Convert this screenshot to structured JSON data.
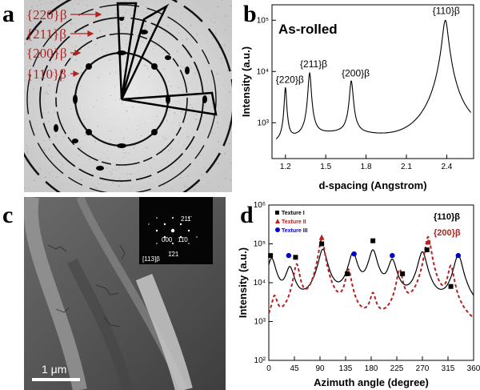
{
  "panels": {
    "a": {
      "letter": "a",
      "ring_labels": [
        "{220}β",
        "{211}β",
        "{200}β",
        "{110}β"
      ]
    },
    "b": {
      "letter": "b",
      "condition": "As-rolled",
      "peak_labels": [
        "{220}β",
        "{211}β",
        "{200}β",
        "{110}β"
      ]
    },
    "c": {
      "letter": "c",
      "scale_bar": "1 μm",
      "saed_zone_axis": "[113]β",
      "saed_spots": [
        "211̄",
        "000",
        "11̄0",
        "1̄21"
      ]
    },
    "d": {
      "letter": "d",
      "legend": [
        "Texture I",
        "Texture II",
        "Texture III"
      ],
      "series_labels": [
        "{110}β",
        "{200}β"
      ]
    }
  },
  "chart_data": [
    {
      "panel": "b",
      "type": "line",
      "title": "As-rolled",
      "xlabel": "d-spacing (Angstrom)",
      "ylabel": "Intensity (a.u.)",
      "xlim": [
        1.1,
        2.6
      ],
      "ylim_log": [
        200,
        200000
      ],
      "yscale": "log",
      "xticks": [
        "1.2",
        "1.5",
        "1.8",
        "2.1",
        "2.4"
      ],
      "yticks": [
        "10³",
        "10⁴",
        "10⁵"
      ],
      "peaks": [
        {
          "label": "{220}β",
          "x": 1.2,
          "y": 4500
        },
        {
          "label": "{211}β",
          "x": 1.38,
          "y": 9000
        },
        {
          "label": "{200}β",
          "x": 1.69,
          "y": 6000
        },
        {
          "label": "{110}β",
          "x": 2.39,
          "y": 100000
        }
      ],
      "baseline": 450,
      "color": "#000000"
    },
    {
      "panel": "d",
      "type": "line",
      "xlabel": "Azimuth angle (degree)",
      "ylabel": "Intensity (a.u.)",
      "xlim": [
        0,
        360
      ],
      "ylim_log": [
        100,
        1000000
      ],
      "yscale": "log",
      "xticks": [
        "0",
        "45",
        "90",
        "135",
        "180",
        "225",
        "270",
        "315",
        "360"
      ],
      "yticks": [
        "10²",
        "10³",
        "10⁴",
        "10⁵",
        "10⁶"
      ],
      "series": [
        {
          "name": "{110}β",
          "color": "#000000",
          "style": "solid",
          "peaks": [
            [
              5,
              40000
            ],
            [
              37,
              22000
            ],
            [
              95,
              70000
            ],
            [
              148,
              55000
            ],
            [
              183,
              65000
            ],
            [
              217,
              35000
            ],
            [
              270,
              60000
            ],
            [
              333,
              50000
            ]
          ],
          "baseline": 900
        },
        {
          "name": "{200}β",
          "color": "#b22222",
          "style": "dashed",
          "peaks": [
            [
              10,
              3500
            ],
            [
              49,
              28000
            ],
            [
              93,
              130000
            ],
            [
              140,
              20000
            ],
            [
              183,
              4000
            ],
            [
              230,
              20000
            ],
            [
              280,
              150000
            ],
            [
              320,
              25000
            ]
          ],
          "baseline": 180
        }
      ],
      "markers": [
        {
          "legend": "Texture I",
          "shape": "square",
          "color": "#000000",
          "points": [
            [
              3,
              50000
            ],
            [
              47,
              45000
            ],
            [
              93,
              100000
            ],
            [
              138,
              17000
            ],
            [
              183,
              120000
            ],
            [
              235,
              17000
            ],
            [
              278,
              70000
            ],
            [
              320,
              8000
            ]
          ]
        },
        {
          "legend": "Texture II",
          "shape": "triangle",
          "color": "#b22222",
          "points": [
            [
              93,
              145000
            ],
            [
              280,
              110000
            ]
          ]
        },
        {
          "legend": "Texture III",
          "shape": "circle",
          "color": "#0000cc",
          "points": [
            [
              35,
              50000
            ],
            [
              150,
              55000
            ],
            [
              217,
              50000
            ],
            [
              333,
              50000
            ]
          ]
        }
      ]
    }
  ]
}
